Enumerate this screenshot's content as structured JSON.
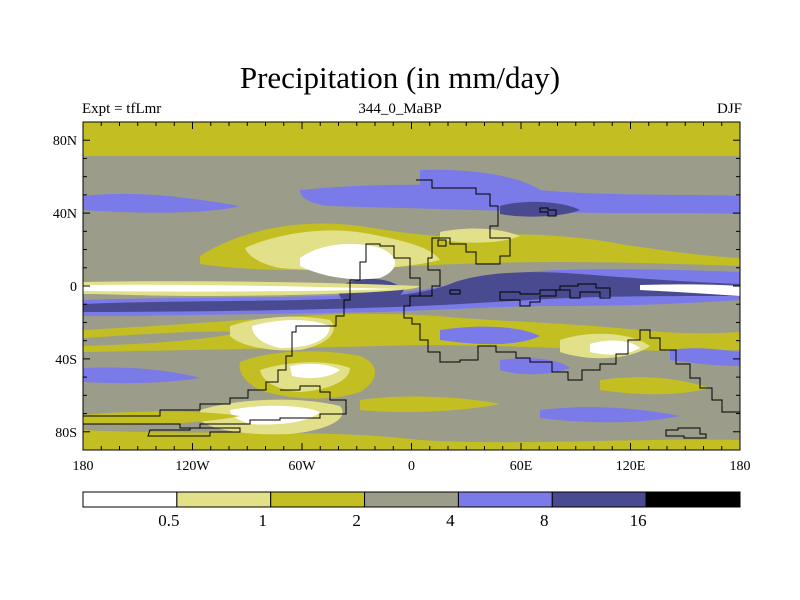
{
  "title": "Precipitation (in mm/day)",
  "experiment_label": "Expt = tfLmr",
  "time_label": "344_0_MaBP",
  "season_label": "DJF",
  "map": {
    "lon_range": [
      -180,
      180
    ],
    "lat_range": [
      -90,
      90
    ],
    "lat_ticks": [
      {
        "value": 80,
        "label": "80N"
      },
      {
        "value": 40,
        "label": "40N"
      },
      {
        "value": 0,
        "label": "0"
      },
      {
        "value": -40,
        "label": "40S"
      },
      {
        "value": -80,
        "label": "80S"
      }
    ],
    "lon_ticks": [
      {
        "value": -180,
        "label": "180"
      },
      {
        "value": -120,
        "label": "120W"
      },
      {
        "value": -60,
        "label": "60W"
      },
      {
        "value": 0,
        "label": "0"
      },
      {
        "value": 60,
        "label": "60E"
      },
      {
        "value": 120,
        "label": "120E"
      },
      {
        "value": 180,
        "label": "180"
      }
    ]
  },
  "colorbar": {
    "levels": [
      "0.5",
      "1",
      "2",
      "4",
      "8",
      "16"
    ],
    "colors": [
      "#ffffff",
      "#e3e08a",
      "#c3bf22",
      "#9c9c8a",
      "#7a7ae8",
      "#4a4a90",
      "#000000"
    ]
  }
}
